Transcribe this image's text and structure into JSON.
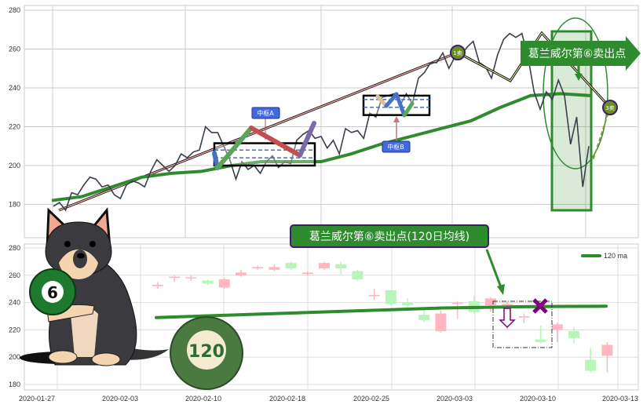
{
  "colors": {
    "price_line": "#3a3f4b",
    "ma_line": "#2e8b2e",
    "trend_line": "#8b2e2e",
    "candle_up": "#ffb6c1",
    "candle_down": "#b8f5b8",
    "label_bg": "#2e8b2e",
    "label_border": "#3b1f6b",
    "zhongshu_label": "#4169e1",
    "marker": "#800080"
  },
  "chart_data": [
    {
      "type": "line",
      "panel": "top",
      "ylim": [
        165,
        282
      ],
      "yticks": [
        "280",
        "260",
        "240",
        "220",
        "200",
        "180"
      ],
      "ytick_values": [
        280,
        260,
        240,
        220,
        200,
        180
      ],
      "grid": true,
      "series": [
        {
          "key": "price",
          "values": [
            179,
            181,
            177,
            186,
            185,
            190,
            194,
            193,
            189,
            190,
            185,
            183,
            190,
            192,
            191,
            189,
            197,
            203,
            200,
            197,
            200,
            206,
            204,
            207,
            208,
            220,
            217,
            217,
            210,
            203,
            193,
            202,
            198,
            200,
            196,
            202,
            205,
            199,
            202,
            201,
            213,
            216,
            218,
            214,
            215,
            209,
            213,
            206,
            219,
            217,
            218,
            214,
            227,
            225,
            235,
            236,
            237,
            231,
            237,
            232,
            245,
            248,
            253,
            253,
            258,
            250,
            256,
            257,
            261,
            264,
            253,
            251,
            245,
            257,
            265,
            268,
            266,
            268,
            256,
            238,
            229,
            238,
            234,
            244,
            236,
            211,
            225,
            189,
            210
          ]
        },
        {
          "key": "ma120",
          "values": [
            182,
            184,
            189,
            194,
            196,
            197,
            200,
            202,
            202,
            202,
            206,
            211,
            215,
            219,
            223,
            230,
            236,
            237,
            236
          ]
        }
      ],
      "annotations": {
        "zhongshu_a": {
          "label": "中枢A",
          "range": [
            200,
            211.5
          ],
          "dashed": [
            204,
            208
          ]
        },
        "zhongshu_b": {
          "label": "中枢B",
          "range": [
            226,
            236
          ],
          "dashed": [
            230,
            234
          ]
        },
        "sell_1": {
          "label": "1卖",
          "value": 258
        },
        "sell_3": {
          "label": "3卖",
          "value": 229
        },
        "banner": "葛兰威尔第⑥卖出点"
      }
    },
    {
      "type": "candlestick",
      "panel": "bottom",
      "ylim": [
        176,
        282
      ],
      "yticks": [
        "280",
        "260",
        "240",
        "220",
        "200",
        "180"
      ],
      "ytick_values": [
        280,
        260,
        240,
        220,
        200,
        180
      ],
      "xticks": [
        "2020-01-27",
        "2020-02-03",
        "2020-02-10",
        "2020-02-18",
        "2020-02-25",
        "2020-03-03",
        "2020-03-10",
        "2020-03-13"
      ],
      "grid": true,
      "legend": {
        "label": "120 ma",
        "placement": "top-right"
      },
      "candles": [
        {
          "o": 252,
          "c": 253,
          "h": 255,
          "l": 250
        },
        {
          "o": 258,
          "c": 259,
          "h": 260,
          "l": 255
        },
        {
          "o": 258,
          "c": 258.5,
          "h": 260,
          "l": 256
        },
        {
          "o": 256,
          "c": 254,
          "h": 257,
          "l": 253
        },
        {
          "o": 251,
          "c": 257,
          "h": 258,
          "l": 250
        },
        {
          "o": 260,
          "c": 262,
          "h": 264,
          "l": 259
        },
        {
          "o": 265,
          "c": 266,
          "h": 267,
          "l": 264
        },
        {
          "o": 264,
          "c": 266,
          "h": 268,
          "l": 263
        },
        {
          "o": 269,
          "c": 265,
          "h": 270,
          "l": 264
        },
        {
          "o": 261,
          "c": 262,
          "h": 263,
          "l": 260
        },
        {
          "o": 265,
          "c": 269,
          "h": 270,
          "l": 264
        },
        {
          "o": 268,
          "c": 265,
          "h": 270,
          "l": 260
        },
        {
          "o": 263,
          "c": 257,
          "h": 264,
          "l": 256
        },
        {
          "o": 245,
          "c": 245.5,
          "h": 250,
          "l": 242
        },
        {
          "o": 249,
          "c": 239,
          "h": 249,
          "l": 238
        },
        {
          "o": 240,
          "c": 238,
          "h": 243,
          "l": 236
        },
        {
          "o": 231,
          "c": 227,
          "h": 235,
          "l": 226
        },
        {
          "o": 219,
          "c": 232,
          "h": 234,
          "l": 218
        },
        {
          "o": 239,
          "c": 240,
          "h": 241,
          "l": 228
        },
        {
          "o": 241,
          "c": 233,
          "h": 245,
          "l": 232
        },
        {
          "o": 238,
          "c": 243,
          "h": 244,
          "l": 233
        },
        {
          "o": 238,
          "c": 239,
          "h": 241,
          "l": 220
        },
        {
          "o": 229,
          "c": 230,
          "h": 232,
          "l": 225
        },
        {
          "o": 213,
          "c": 211,
          "h": 223,
          "l": 210
        },
        {
          "o": 220,
          "c": 224,
          "h": 225,
          "l": 211
        },
        {
          "o": 219,
          "c": 214,
          "h": 222,
          "l": 210
        },
        {
          "o": 198,
          "c": 190,
          "h": 207,
          "l": 189
        },
        {
          "o": 201,
          "c": 209,
          "h": 211,
          "l": 189
        }
      ],
      "ma120": [
        229,
        230,
        231,
        232,
        233,
        234,
        235,
        236,
        236.5,
        237,
        237.2,
        237.3
      ],
      "annotation": "葛兰威尔第⑥卖出点(120日均线)"
    }
  ],
  "illustration": {
    "ball_left": "6",
    "ball_right": "120"
  }
}
